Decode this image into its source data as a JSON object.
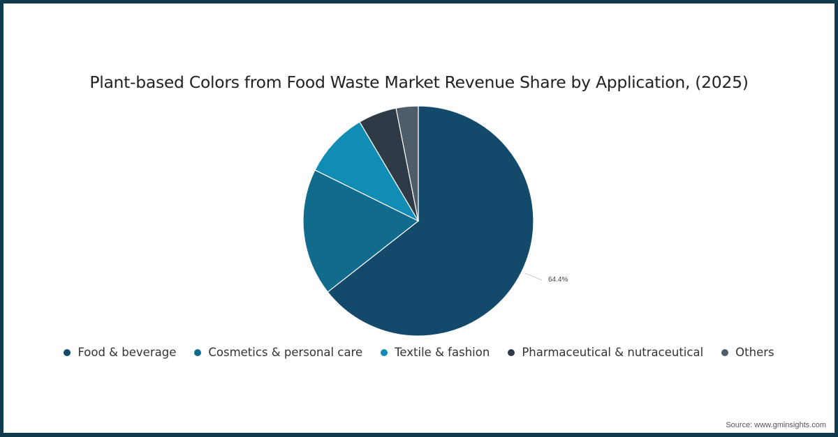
{
  "title": "Plant-based Colors from Food Waste Market Revenue Share by Application, (2025)",
  "source": "Source: www.gminsights.com",
  "data_label": "64.4%",
  "legend": [
    {
      "label": "Food & beverage",
      "color": "#134a6b"
    },
    {
      "label": "Cosmetics & personal care",
      "color": "#116b8d"
    },
    {
      "label": "Textile & fashion",
      "color": "#118db5"
    },
    {
      "label": "Pharmaceutical & nutraceutical",
      "color": "#2e3a45"
    },
    {
      "label": "Others",
      "color": "#4e5d69"
    }
  ],
  "chart_data": {
    "type": "pie",
    "title": "Plant-based Colors from Food Waste Market Revenue Share by Application, (2025)",
    "categories": [
      "Food & beverage",
      "Cosmetics & personal care",
      "Textile & fashion",
      "Pharmaceutical & nutraceutical",
      "Others"
    ],
    "values": [
      64.4,
      17.9,
      9.2,
      5.4,
      3.1
    ],
    "colors": [
      "#134a6b",
      "#116b8d",
      "#118db5",
      "#2e3a45",
      "#4e5d69"
    ],
    "unit": "%",
    "annotations": [
      {
        "category": "Food & beverage",
        "text": "64.4%"
      }
    ],
    "legend_position": "bottom",
    "start_angle": 0,
    "direction": "clockwise"
  }
}
